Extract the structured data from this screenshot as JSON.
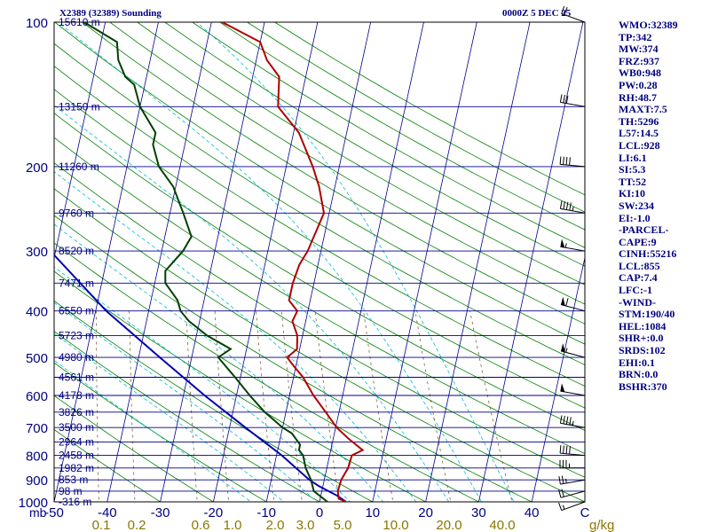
{
  "header": {
    "title": "X2389 (32389) Sounding",
    "valid_time": "0000Z  5 DEC 25"
  },
  "stats": [
    "WMO:32389",
    "TP:342",
    "MW:374",
    "FRZ:937",
    "WB0:948",
    "PW:0.28",
    "RH:48.7",
    "MAXT:7.5",
    "TH:5296",
    "L57:14.5",
    "LCL:928",
    "LI:6.1",
    "SI:5.3",
    "TT:52",
    "KI:10",
    "SW:234",
    "EI:-1.0",
    "-PARCEL-",
    "CAPE:9",
    "CINH:55216",
    "LCL:855",
    "CAP:7.4",
    "LFC:-1",
    "-WIND-",
    "STM:190/40",
    "HEL:1084",
    "SHR+:0.0",
    "SRDS:102",
    "EHI:0.1",
    "BRN:0.0",
    "BSHR:370"
  ],
  "colors": {
    "isobar": "#00008b",
    "isotherm": "#00008b",
    "dry_adiabat": "#008000",
    "moist_adiabat": "#00bcd4",
    "mixing_ratio": "#6b4e16",
    "temperature": "#b00000",
    "dewpoint": "#004000",
    "parcel": "#0000b0",
    "axis_text": "#000080",
    "mixing_text": "#8b7500"
  },
  "chart_data": {
    "type": "skew-t",
    "title": "X2389 (32389) Sounding",
    "xlabel": "Temperature (C)",
    "ylabel": "Pressure (mb)",
    "pressure_unit": "mb",
    "mixing_unit": "g/kg",
    "temp_range": [
      -50,
      50
    ],
    "pressure_range": [
      1000,
      100
    ],
    "pressure_ticks": [
      100,
      200,
      300,
      400,
      500,
      600,
      700,
      800,
      900,
      1000
    ],
    "temp_ticks": [
      -50,
      -40,
      -30,
      -20,
      -10,
      0,
      10,
      20,
      30,
      40
    ],
    "temp_tick_labels": [
      "-50",
      "-40",
      "-30",
      "-20",
      "-10",
      "0",
      "10",
      "20",
      "30",
      "40",
      "C"
    ],
    "mixing_ratio_labels": [
      "0.1",
      "0.2",
      "0.6",
      "1.0",
      "2.0",
      "3.0",
      "5.0",
      "10.0",
      "20.0",
      "40.0",
      "g/kg"
    ],
    "heights": [
      {
        "p": 100,
        "label": "15610 m"
      },
      {
        "p": 150,
        "label": "13150 m"
      },
      {
        "p": 200,
        "label": "11260 m"
      },
      {
        "p": 250,
        "label": "9760 m"
      },
      {
        "p": 300,
        "label": "8520 m"
      },
      {
        "p": 350,
        "label": "7471 m"
      },
      {
        "p": 400,
        "label": "6550 m"
      },
      {
        "p": 450,
        "label": "5723 m"
      },
      {
        "p": 500,
        "label": "4980 m"
      },
      {
        "p": 550,
        "label": "4561 m"
      },
      {
        "p": 600,
        "label": "4178 m"
      },
      {
        "p": 650,
        "label": "3826 m"
      },
      {
        "p": 700,
        "label": "3500 m"
      },
      {
        "p": 750,
        "label": "2964 m"
      },
      {
        "p": 800,
        "label": "2458 m"
      },
      {
        "p": 850,
        "label": "1982 m"
      },
      {
        "p": 900,
        "label": "853 m"
      },
      {
        "p": 950,
        "label": "98 m"
      },
      {
        "p": 1000,
        "label": "-316 m"
      }
    ],
    "temperature": [
      [
        1000,
        5.0
      ],
      [
        985,
        3.5
      ],
      [
        950,
        3.0
      ],
      [
        900,
        3.2
      ],
      [
        850,
        4.0
      ],
      [
        800,
        4.2
      ],
      [
        780,
        6.0
      ],
      [
        740,
        3.0
      ],
      [
        700,
        0.2
      ],
      [
        650,
        -2.5
      ],
      [
        600,
        -5.5
      ],
      [
        550,
        -8.2
      ],
      [
        520,
        -10.5
      ],
      [
        500,
        -12.0
      ],
      [
        480,
        -10.5
      ],
      [
        450,
        -11.0
      ],
      [
        420,
        -12.5
      ],
      [
        400,
        -12.0
      ],
      [
        380,
        -14.0
      ],
      [
        350,
        -14.0
      ],
      [
        320,
        -13.5
      ],
      [
        300,
        -12.5
      ],
      [
        250,
        -11.0
      ],
      [
        220,
        -13.0
      ],
      [
        200,
        -15.0
      ],
      [
        170,
        -19.0
      ],
      [
        150,
        -24.0
      ],
      [
        130,
        -25.0
      ],
      [
        120,
        -28.0
      ],
      [
        110,
        -30.0
      ],
      [
        100,
        -38.0
      ]
    ],
    "dewpoint": [
      [
        1000,
        1.5
      ],
      [
        950,
        -1.5
      ],
      [
        900,
        -2.5
      ],
      [
        850,
        -4.0
      ],
      [
        800,
        -5.0
      ],
      [
        780,
        -6.0
      ],
      [
        760,
        -6.0
      ],
      [
        720,
        -8.0
      ],
      [
        700,
        -10.0
      ],
      [
        650,
        -14.0
      ],
      [
        600,
        -17.5
      ],
      [
        550,
        -21.0
      ],
      [
        500,
        -25.0
      ],
      [
        480,
        -23.0
      ],
      [
        450,
        -28.0
      ],
      [
        420,
        -32.0
      ],
      [
        400,
        -34.0
      ],
      [
        380,
        -35.0
      ],
      [
        350,
        -38.0
      ],
      [
        330,
        -38.5
      ],
      [
        300,
        -36.0
      ],
      [
        280,
        -35.0
      ],
      [
        250,
        -37.5
      ],
      [
        220,
        -40.5
      ],
      [
        200,
        -44.0
      ],
      [
        180,
        -46.0
      ],
      [
        170,
        -46.0
      ],
      [
        150,
        -50.0
      ],
      [
        135,
        -52.0
      ],
      [
        130,
        -54.0
      ],
      [
        120,
        -56.0
      ],
      [
        110,
        -57.0
      ],
      [
        100,
        -64.0
      ]
    ],
    "parcel": [
      [
        1000,
        5.0
      ],
      [
        970,
        3.0
      ],
      [
        928,
        -0.7
      ],
      [
        900,
        -2.8
      ],
      [
        855,
        -5.5
      ],
      [
        800,
        -9.0
      ],
      [
        700,
        -17.0
      ],
      [
        600,
        -26.0
      ],
      [
        500,
        -36.0
      ],
      [
        400,
        -48.0
      ],
      [
        300,
        -61.0
      ],
      [
        250,
        -68.0
      ],
      [
        200,
        -77.0
      ],
      [
        150,
        -88.0
      ],
      [
        110,
        -97.0
      ]
    ],
    "wind_barbs": [
      {
        "p": 1000,
        "dir": 250,
        "spd": 15
      },
      {
        "p": 950,
        "dir": 255,
        "spd": 20
      },
      {
        "p": 900,
        "dir": 260,
        "spd": 25
      },
      {
        "p": 850,
        "dir": 270,
        "spd": 35
      },
      {
        "p": 800,
        "dir": 275,
        "spd": 40
      },
      {
        "p": 700,
        "dir": 280,
        "spd": 45
      },
      {
        "p": 600,
        "dir": 280,
        "spd": 50
      },
      {
        "p": 500,
        "dir": 285,
        "spd": 55
      },
      {
        "p": 400,
        "dir": 285,
        "spd": 60
      },
      {
        "p": 300,
        "dir": 280,
        "spd": 55
      },
      {
        "p": 250,
        "dir": 280,
        "spd": 45
      },
      {
        "p": 200,
        "dir": 275,
        "spd": 40
      },
      {
        "p": 150,
        "dir": 280,
        "spd": 30
      },
      {
        "p": 100,
        "dir": 290,
        "spd": 20
      }
    ]
  }
}
